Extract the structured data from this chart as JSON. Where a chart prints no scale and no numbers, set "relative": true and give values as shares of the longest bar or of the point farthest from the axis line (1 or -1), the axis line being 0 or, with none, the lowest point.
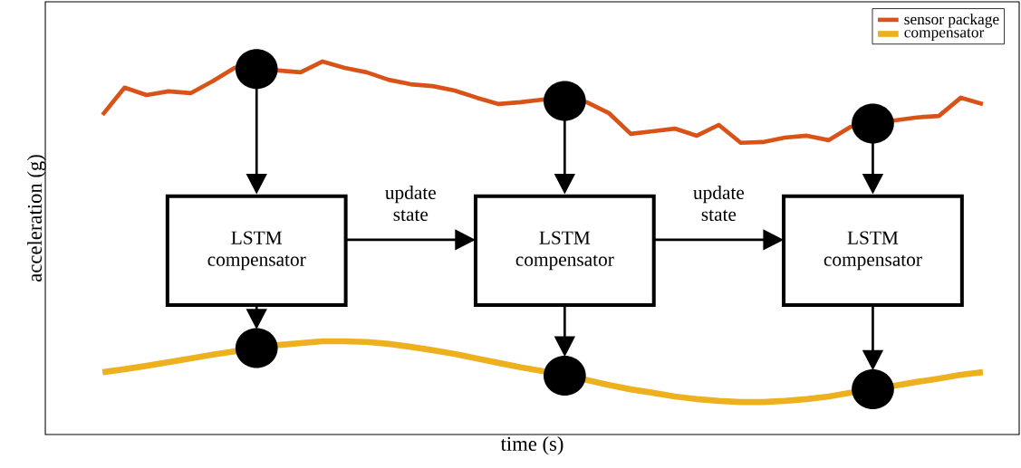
{
  "chart_data": {
    "type": "line",
    "xlabel": "time (s)",
    "ylabel": "acceleration (g)",
    "relative": true,
    "tick_labels": false,
    "legend": "top right",
    "marker": "none",
    "line_style": "solid",
    "categories": [
      null,
      null,
      null,
      null,
      null,
      null,
      null,
      null,
      null,
      null,
      null,
      null,
      null,
      null,
      null,
      null,
      null,
      null,
      null,
      null,
      null,
      null,
      null,
      null,
      null,
      null,
      null,
      null,
      null,
      null,
      null,
      null,
      null,
      null,
      null,
      null,
      null,
      null,
      null,
      null,
      null
    ],
    "series": [
      {
        "name": "sensor package",
        "color": "#d95319",
        "values": [
          0.857,
          0.93,
          0.91,
          0.92,
          0.915,
          0.947,
          0.983,
          null,
          0.976,
          0.971,
          1,
          0.983,
          0.971,
          0.951,
          0.939,
          0.934,
          0.922,
          0.903,
          0.886,
          0.891,
          0.898,
          null,
          0.891,
          0.862,
          0.806,
          0.813,
          0.82,
          0.801,
          0.83,
          0.782,
          0.784,
          0.796,
          0.801,
          0.789,
          0.825,
          null,
          0.842,
          0.85,
          0.854,
          0.903,
          0.886
        ]
      },
      {
        "name": "compensator",
        "color": "#edb120",
        "values": [
          0.167,
          0.175,
          0.184,
          0.194,
          0.204,
          0.214,
          0.223,
          null,
          0.24,
          0.245,
          0.25,
          0.25,
          0.248,
          0.243,
          0.235,
          0.226,
          0.216,
          0.204,
          0.192,
          0.18,
          0.17,
          null,
          0.146,
          0.133,
          0.121,
          0.112,
          0.102,
          0.095,
          0.09,
          0.087,
          0.087,
          0.09,
          0.095,
          0.102,
          0.112,
          null,
          0.131,
          0.141,
          0.15,
          0.16,
          0.167
        ]
      }
    ],
    "annotations": [
      "LSTM compensator",
      "update state",
      "LSTM compensator",
      "update state",
      "LSTM compensator"
    ]
  }
}
